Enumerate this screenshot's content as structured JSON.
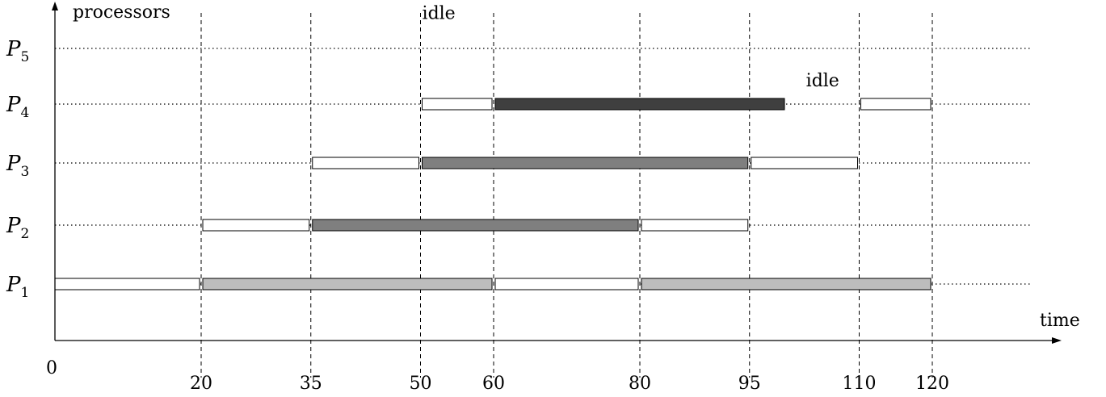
{
  "chart_data": {
    "type": "gantt",
    "xlabel": "time",
    "ylabel": "processors",
    "xlim": [
      0,
      120
    ],
    "x_ticks": [
      "0",
      "20",
      "35",
      "50",
      "60",
      "80",
      "95",
      "110",
      "120"
    ],
    "vertical_guides_at": [
      20,
      35,
      50,
      60,
      80,
      95,
      110,
      120
    ],
    "processors": [
      {
        "name": "P",
        "index": "1"
      },
      {
        "name": "P",
        "index": "2"
      },
      {
        "name": "P",
        "index": "3"
      },
      {
        "name": "P",
        "index": "4"
      },
      {
        "name": "P",
        "index": "5"
      }
    ],
    "fill_colors": {
      "white": "#ffffff",
      "light": "#bdbdbd",
      "medium": "#7f7f7f",
      "dark": "#3f3f3f"
    },
    "bars": [
      {
        "processor": 1,
        "start": 0,
        "end": 20,
        "fill": "white"
      },
      {
        "processor": 1,
        "start": 20,
        "end": 60,
        "fill": "light"
      },
      {
        "processor": 1,
        "start": 60,
        "end": 80,
        "fill": "white"
      },
      {
        "processor": 1,
        "start": 80,
        "end": 120,
        "fill": "light"
      },
      {
        "processor": 2,
        "start": 20,
        "end": 35,
        "fill": "white"
      },
      {
        "processor": 2,
        "start": 35,
        "end": 80,
        "fill": "medium"
      },
      {
        "processor": 2,
        "start": 80,
        "end": 95,
        "fill": "white"
      },
      {
        "processor": 3,
        "start": 35,
        "end": 50,
        "fill": "white"
      },
      {
        "processor": 3,
        "start": 50,
        "end": 95,
        "fill": "medium"
      },
      {
        "processor": 3,
        "start": 95,
        "end": 110,
        "fill": "white"
      },
      {
        "processor": 4,
        "start": 50,
        "end": 60,
        "fill": "white"
      },
      {
        "processor": 4,
        "start": 60,
        "end": 100,
        "fill": "dark"
      },
      {
        "processor": 4,
        "start": 110,
        "end": 120,
        "fill": "white"
      }
    ],
    "annotations": [
      {
        "text": "idle",
        "x": 52.5,
        "processor": 5.5
      },
      {
        "text": "idle",
        "x": 105,
        "processor": 4.3
      }
    ]
  }
}
